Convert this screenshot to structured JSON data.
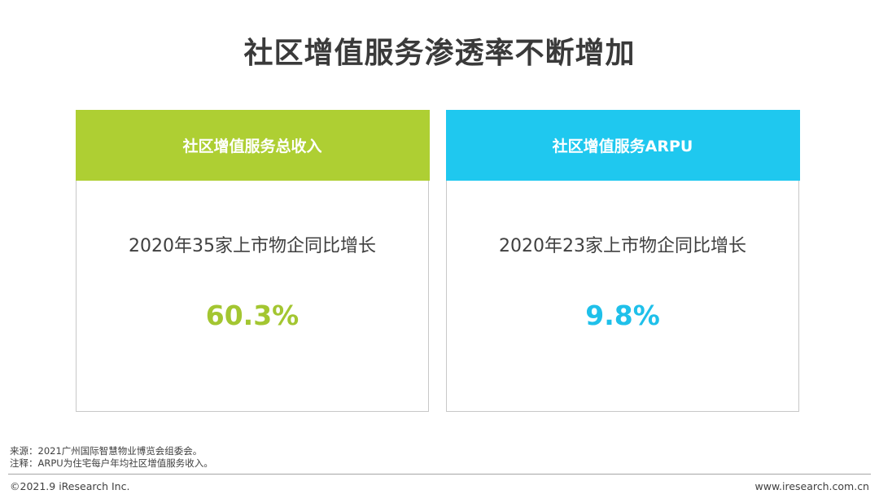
{
  "title": "社区增值服务渗透率不断增加",
  "cards": [
    {
      "header": "社区增值服务总收入",
      "subtitle": "2020年35家上市物企同比增长",
      "value": "60.3%",
      "color": "#aecf33"
    },
    {
      "header": "社区增值服务ARPU",
      "subtitle": "2020年23家上市物企同比增长",
      "value": "9.8%",
      "color": "#1fc8ef"
    }
  ],
  "notes": {
    "source": "来源：2021广州国际智慧物业博览会组委会。",
    "remark": "注释：ARPU为住宅每户年均社区增值服务收入。"
  },
  "footer": {
    "copyright": "©2021.9 iResearch Inc.",
    "website": "www.iresearch.com.cn"
  }
}
